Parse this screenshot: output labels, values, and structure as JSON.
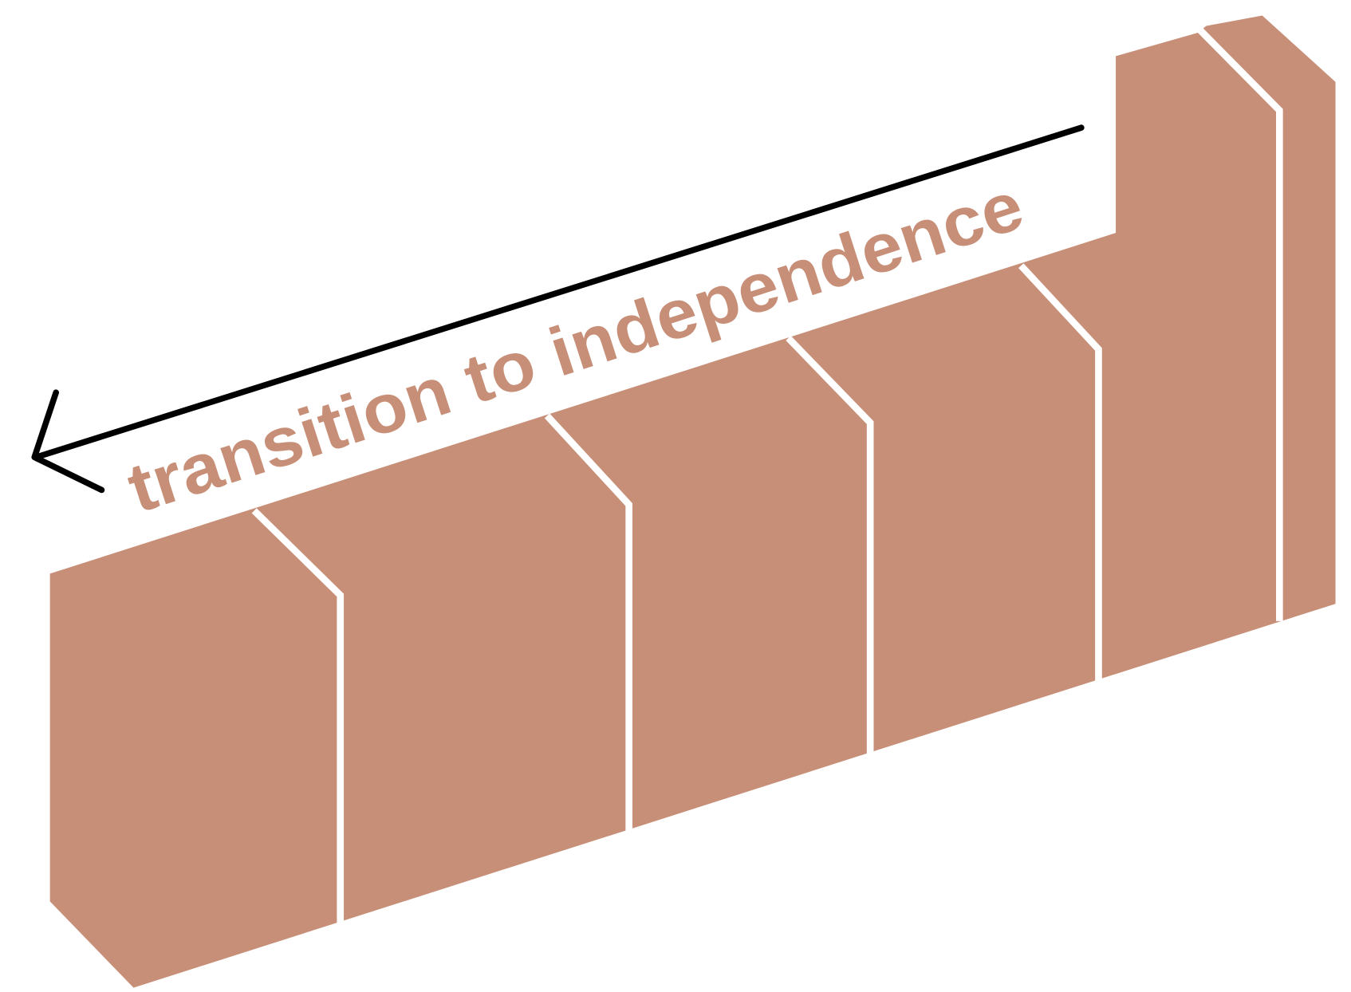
{
  "label": "transition to independence"
}
